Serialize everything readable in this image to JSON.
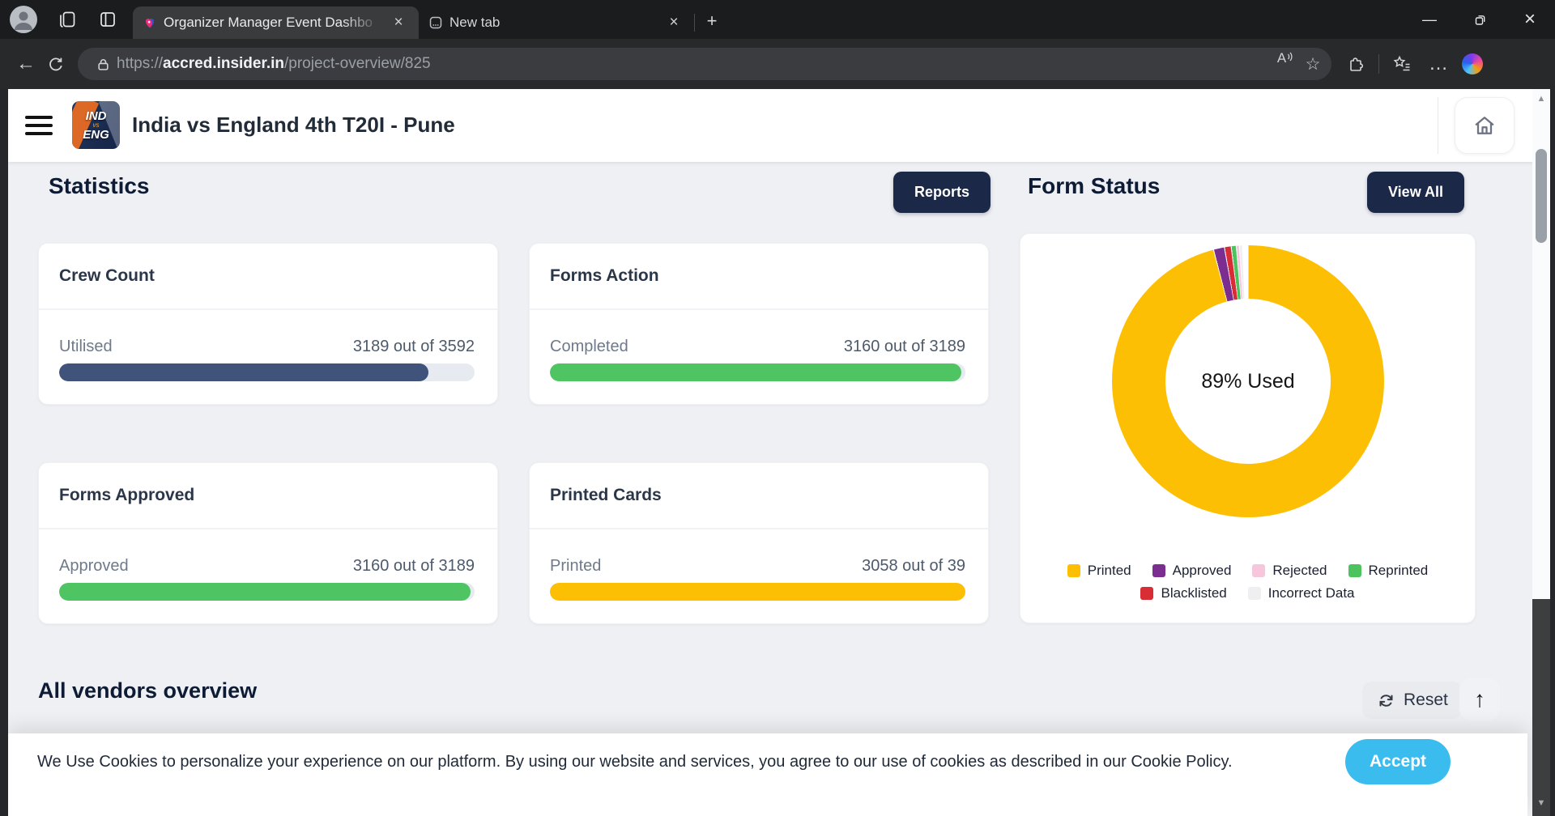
{
  "browser": {
    "tabs": [
      {
        "title": "Organizer Manager Event Dashbo"
      },
      {
        "title": "New tab"
      }
    ],
    "url": {
      "scheme": "https://",
      "host": "accred.insider.in",
      "path": "/project-overview/825"
    }
  },
  "icons": {
    "close": "×",
    "plus": "+",
    "back": "←",
    "up_arrow": "↑",
    "ellipsis": "…",
    "star": "☆",
    "minimize": "—",
    "scroll_up": "▲",
    "scroll_down": "▼",
    "read_aloud": "A"
  },
  "header": {
    "title": "India vs England 4th T20I - Pune",
    "logo_top": "IND",
    "logo_mid": "vs",
    "logo_bottom": "ENG"
  },
  "sections": {
    "statistics_heading": "Statistics",
    "reports_button": "Reports",
    "form_status_heading": "Form Status",
    "view_all_button": "View All",
    "vendors_heading": "All vendors overview",
    "reset_button": "Reset"
  },
  "stat_cards": [
    {
      "title": "Crew Count",
      "label": "Utilised",
      "current": 3189,
      "total": 3592,
      "color": "#3F537B"
    },
    {
      "title": "Forms Action",
      "label": "Completed",
      "current": 3160,
      "total": 3189,
      "color": "#4FC463"
    },
    {
      "title": "Forms Approved",
      "label": "Approved",
      "current": 3160,
      "total": 3189,
      "color": "#4FC463"
    },
    {
      "title": "Printed Cards",
      "label": "Printed",
      "current": 3058,
      "total": 39,
      "color": "#FDBF04"
    }
  ],
  "chart_data": {
    "type": "donut",
    "title": "Form Status",
    "center_label": "89% Used",
    "primary_slice_label": "95.9%",
    "slices": [
      {
        "label": "Printed",
        "value": 95.9,
        "color": "#FDBF04"
      },
      {
        "label": "Approved",
        "value": 1.3,
        "color": "#7B2D90"
      },
      {
        "label": "Blacklisted",
        "value": 0.8,
        "color": "#D92D36"
      },
      {
        "label": "Reprinted",
        "value": 0.6,
        "color": "#4CC35D"
      },
      {
        "label": "Rejected",
        "value": 0.3,
        "color": "#F6C7DC"
      },
      {
        "label": "Incorrect Data",
        "value": 0.2,
        "color": "#EFEFF1"
      }
    ],
    "legend_rows": [
      [
        "Printed",
        "Approved",
        "Rejected",
        "Reprinted"
      ],
      [
        "Blacklisted",
        "Incorrect Data"
      ]
    ],
    "legend_position": "bottom"
  },
  "cookie_banner": {
    "text": "We Use Cookies to personalize your experience on our platform. By using our website and services, you agree to our use of cookies as described in our Cookie Policy.",
    "accept_button": "Accept"
  }
}
